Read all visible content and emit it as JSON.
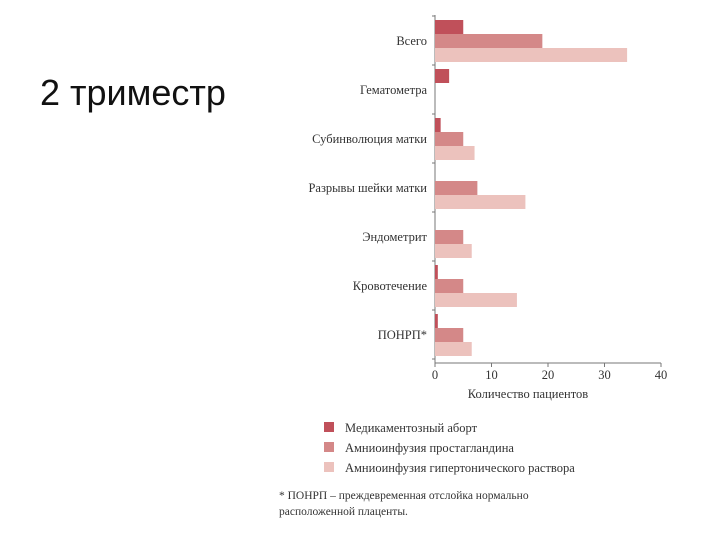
{
  "slide": {
    "title": "2 триместр"
  },
  "footnote": "* ПОНРП – преждевременная отслойка нормально расположенной плаценты.",
  "chart_data": {
    "type": "bar",
    "orientation": "horizontal",
    "categories": [
      "Всего",
      "Гематометра",
      "Субинволюция матки",
      "Разрывы шейки матки",
      "Эндометрит",
      "Кровотечение",
      "ПОНРП*"
    ],
    "series": [
      {
        "name": "Медикаментозный аборт",
        "color": "#c0505a",
        "values": [
          5,
          2.5,
          1,
          0,
          0,
          0.5,
          0.5
        ]
      },
      {
        "name": "Амниоинфузия простагландина",
        "color": "#d48888",
        "values": [
          19,
          0,
          5,
          7.5,
          5,
          5,
          5
        ]
      },
      {
        "name": "Амниоинфузия гипертонического раствора",
        "color": "#ecc2bd",
        "values": [
          34,
          0,
          7,
          16,
          6.5,
          14.5,
          6.5
        ]
      }
    ],
    "xlabel": "Количество пациентов",
    "ylabel": "",
    "xlim": [
      0,
      40
    ],
    "xticks": [
      0,
      10,
      20,
      30,
      40
    ],
    "grid": false,
    "legend_position": "bottom"
  }
}
